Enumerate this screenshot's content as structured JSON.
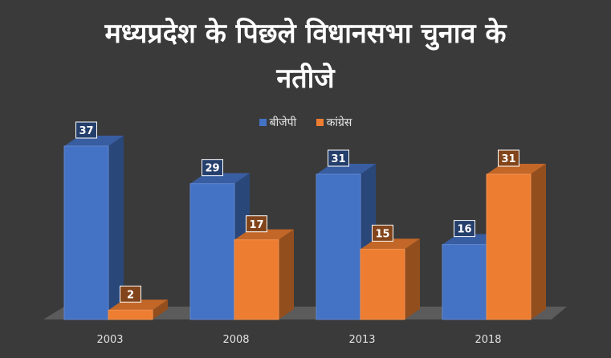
{
  "chart_data": {
    "type": "bar",
    "title_lines": [
      "मध्यप्रदेश के पिछले विधानसभा चुनाव के",
      "नतीजे"
    ],
    "categories": [
      "2003",
      "2008",
      "2013",
      "2018"
    ],
    "series": [
      {
        "name": "बीजेपी",
        "color": "#4472c4",
        "values": [
          37,
          29,
          31,
          16
        ]
      },
      {
        "name": "कांग्रेस",
        "color": "#ed7d31",
        "values": [
          2,
          17,
          15,
          31
        ]
      }
    ],
    "ylim": [
      0,
      40
    ],
    "grid": false,
    "legend_position": "top",
    "data_labels": true,
    "style": "3d-column"
  },
  "background_color": "#3a3a3a"
}
